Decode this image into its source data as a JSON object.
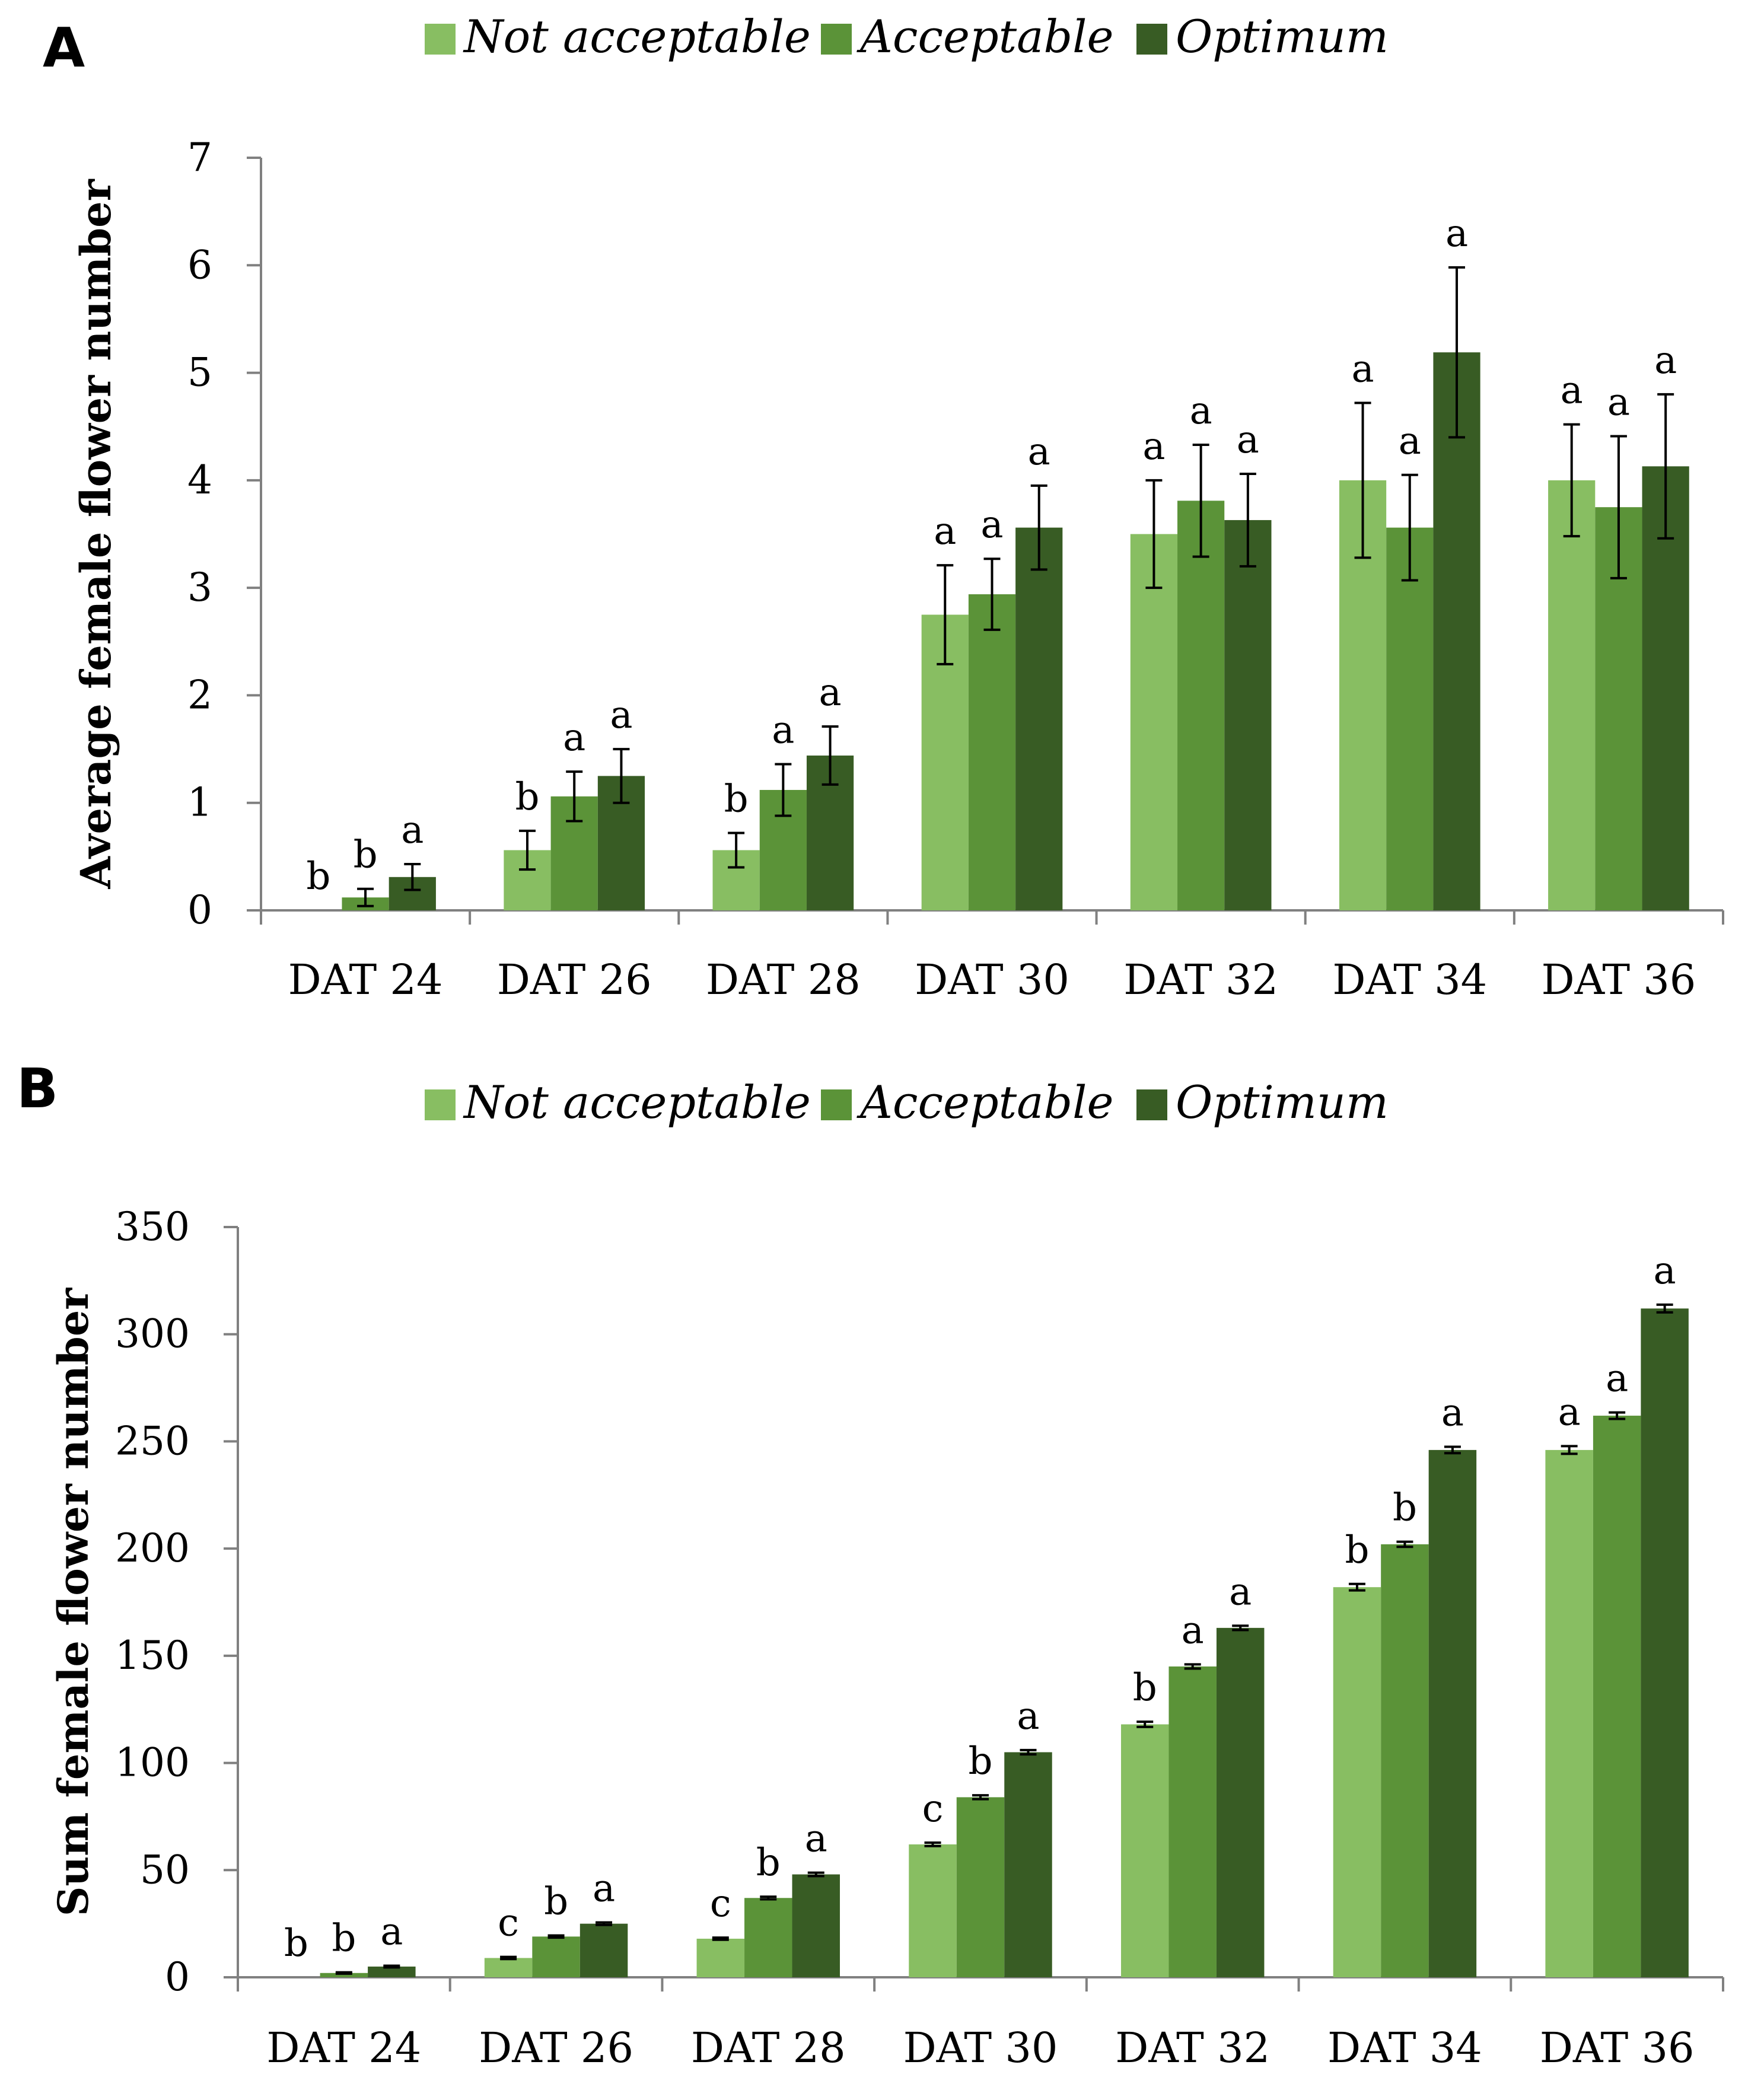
{
  "colors": {
    "not_acceptable": "#88be62",
    "acceptable": "#5b9338",
    "optimum": "#385c24",
    "axis": "#808080"
  },
  "chart_data": [
    {
      "panel": "A",
      "type": "bar",
      "legend": [
        "Not acceptable",
        "Acceptable",
        "Optimum"
      ],
      "legend_position": "top",
      "ylabel": "Average female flower number",
      "xlabel": "",
      "ylim": [
        0,
        7
      ],
      "yticks": [
        0,
        1,
        2,
        3,
        4,
        5,
        6,
        7
      ],
      "categories": [
        "DAT 24",
        "DAT 26",
        "DAT 28",
        "DAT 30",
        "DAT 32",
        "DAT 34",
        "DAT 36"
      ],
      "series": [
        {
          "name": "Not acceptable",
          "values": [
            0,
            0.56,
            0.56,
            2.75,
            3.5,
            4.0,
            4.0
          ],
          "errors": [
            0,
            0.18,
            0.16,
            0.46,
            0.5,
            0.72,
            0.52
          ],
          "labels": [
            "b",
            "b",
            "b",
            "a",
            "a",
            "a",
            "a"
          ]
        },
        {
          "name": "Acceptable",
          "values": [
            0.12,
            1.06,
            1.12,
            2.94,
            3.81,
            3.56,
            3.75
          ],
          "errors": [
            0.08,
            0.23,
            0.24,
            0.33,
            0.52,
            0.49,
            0.66
          ],
          "labels": [
            "b",
            "a",
            "a",
            "a",
            "a",
            "a",
            "a"
          ]
        },
        {
          "name": "Optimum",
          "values": [
            0.31,
            1.25,
            1.44,
            3.56,
            3.63,
            5.19,
            4.13
          ],
          "errors": [
            0.12,
            0.25,
            0.27,
            0.39,
            0.43,
            0.79,
            0.67
          ],
          "labels": [
            "a",
            "a",
            "a",
            "a",
            "a",
            "a",
            "a"
          ]
        }
      ]
    },
    {
      "panel": "B",
      "type": "bar",
      "legend": [
        "Not acceptable",
        "Acceptable",
        "Optimum"
      ],
      "legend_position": "top",
      "ylabel": "Sum female flower number",
      "xlabel": "",
      "ylim": [
        0,
        350
      ],
      "yticks": [
        0,
        50,
        100,
        150,
        200,
        250,
        300,
        350
      ],
      "categories": [
        "DAT 24",
        "DAT 26",
        "DAT 28",
        "DAT 30",
        "DAT 32",
        "DAT 34",
        "DAT 36"
      ],
      "series": [
        {
          "name": "Not acceptable",
          "values": [
            0,
            9,
            18,
            62,
            118,
            182,
            246
          ],
          "errors": [
            0,
            0.5,
            0.5,
            0.8,
            1.2,
            1.5,
            1.8
          ],
          "labels": [
            "b",
            "c",
            "c",
            "c",
            "b",
            "b",
            "a"
          ]
        },
        {
          "name": "Acceptable",
          "values": [
            2,
            19,
            37,
            84,
            145,
            202,
            262
          ],
          "errors": [
            0.3,
            0.5,
            0.6,
            0.9,
            1.0,
            1.2,
            1.5
          ],
          "labels": [
            "b",
            "b",
            "b",
            "b",
            "a",
            "b",
            "a"
          ]
        },
        {
          "name": "Optimum",
          "values": [
            5,
            25,
            48,
            105,
            163,
            246,
            312
          ],
          "errors": [
            0.4,
            0.6,
            0.8,
            1.0,
            1.0,
            1.5,
            1.8
          ],
          "labels": [
            "a",
            "a",
            "a",
            "a",
            "a",
            "a",
            "a"
          ]
        }
      ]
    }
  ]
}
